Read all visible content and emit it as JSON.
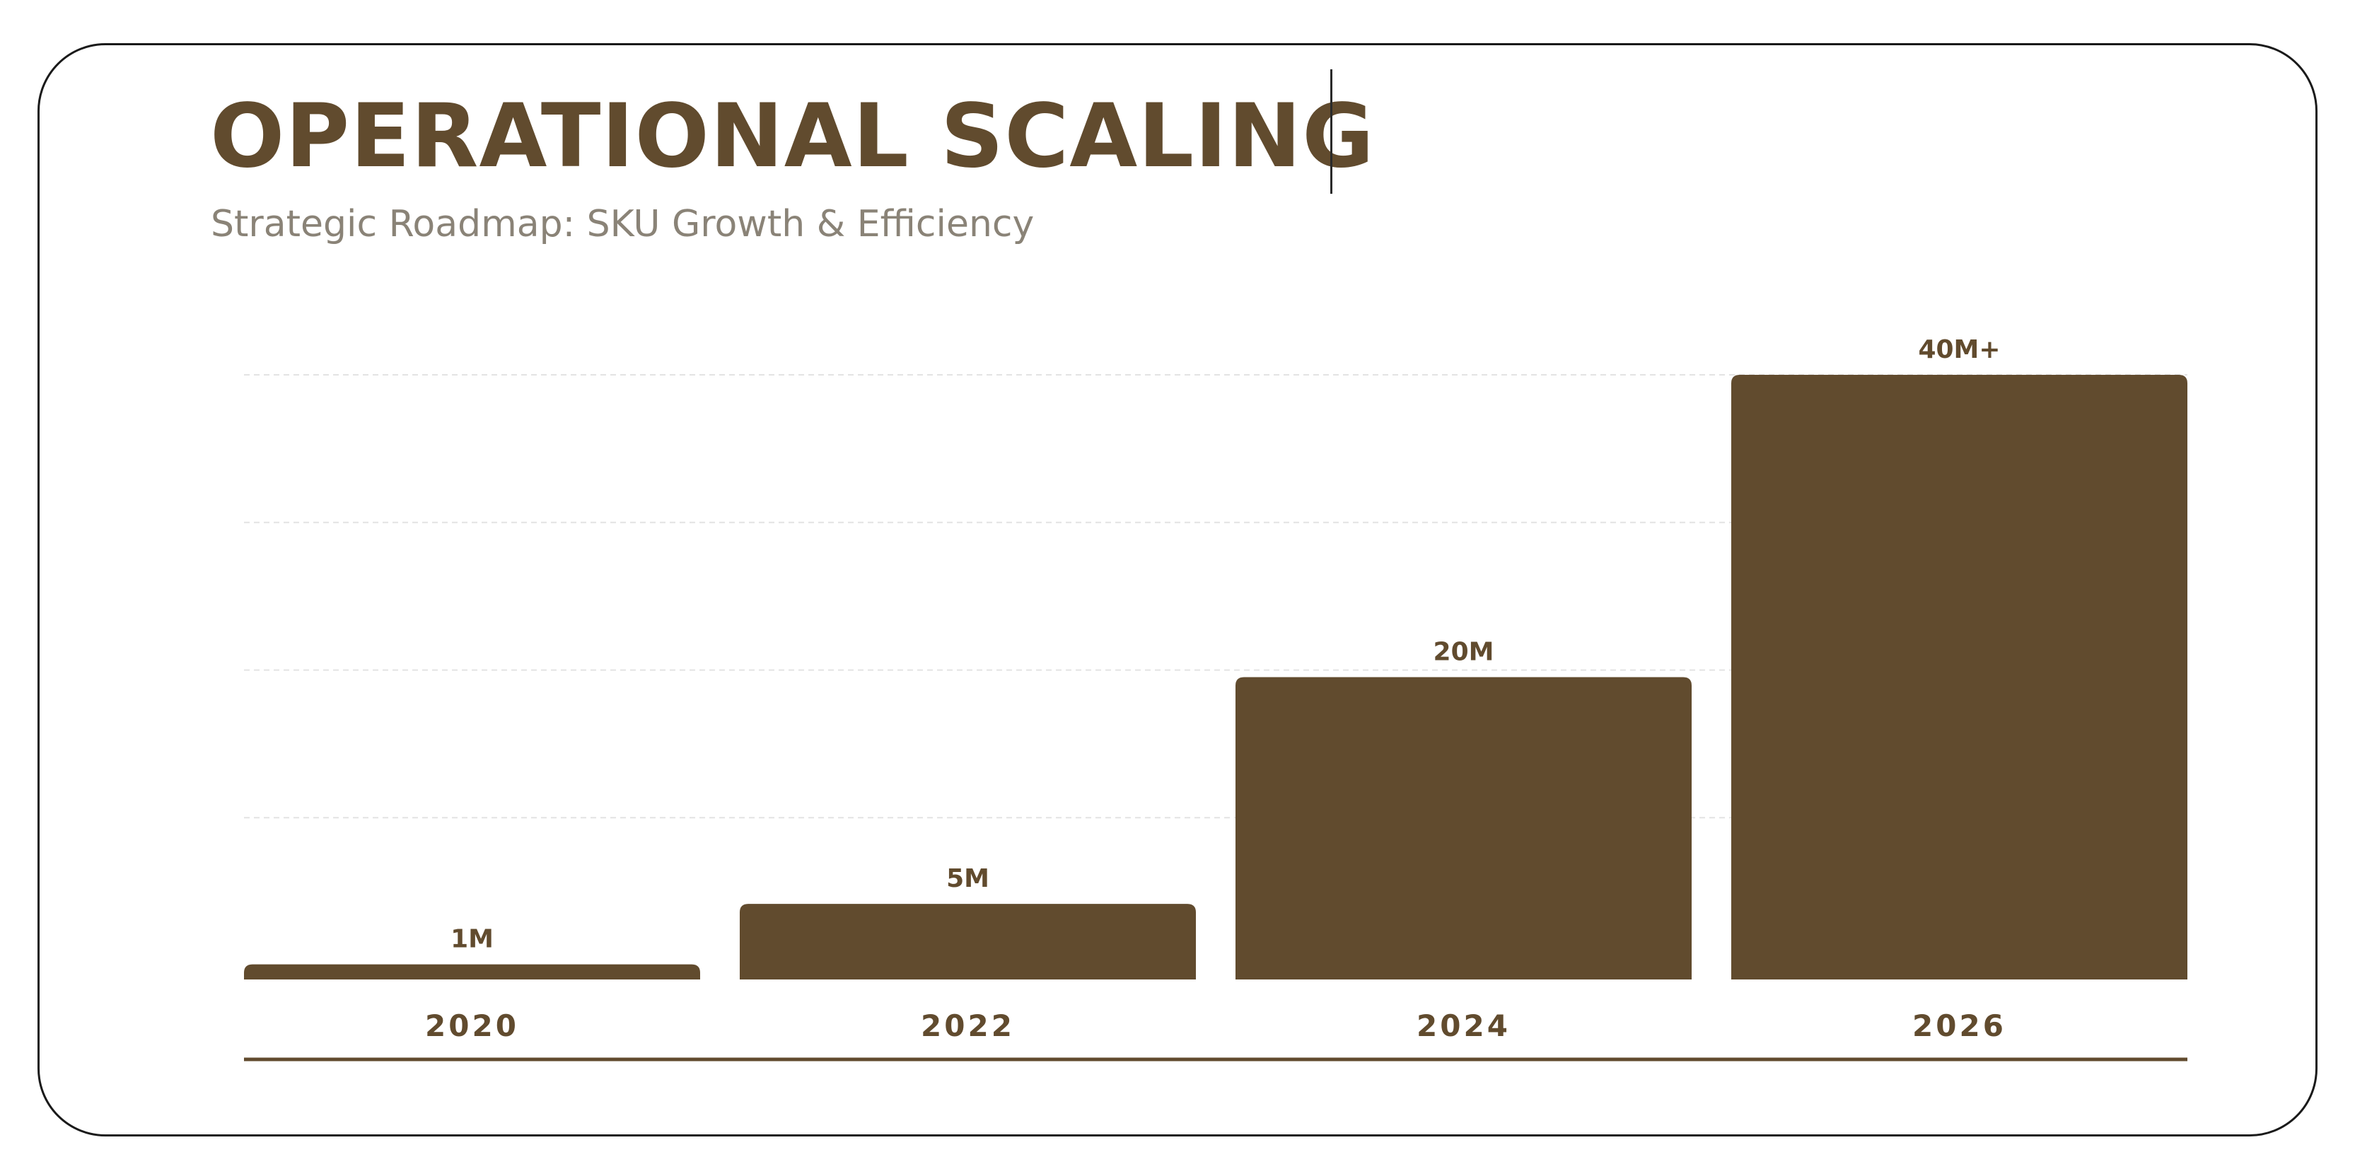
{
  "header": {
    "title": "OPERATIONAL SCALING",
    "subtitle": "Strategic Roadmap: SKU Growth & Efficiency"
  },
  "colors": {
    "bar": "#614b2e",
    "title": "#614b2e",
    "subtitle": "#8a8377",
    "gridline": "#e3e3e3"
  },
  "chart_data": {
    "type": "bar",
    "categories": [
      "2020",
      "2022",
      "2024",
      "2026"
    ],
    "values": [
      1,
      5,
      20,
      40
    ],
    "value_labels": [
      "1M",
      "5M",
      "20M",
      "40M+"
    ],
    "title": "",
    "xlabel": "",
    "ylabel": "",
    "ylim": [
      0,
      40
    ],
    "grid": true,
    "legend": "none"
  }
}
